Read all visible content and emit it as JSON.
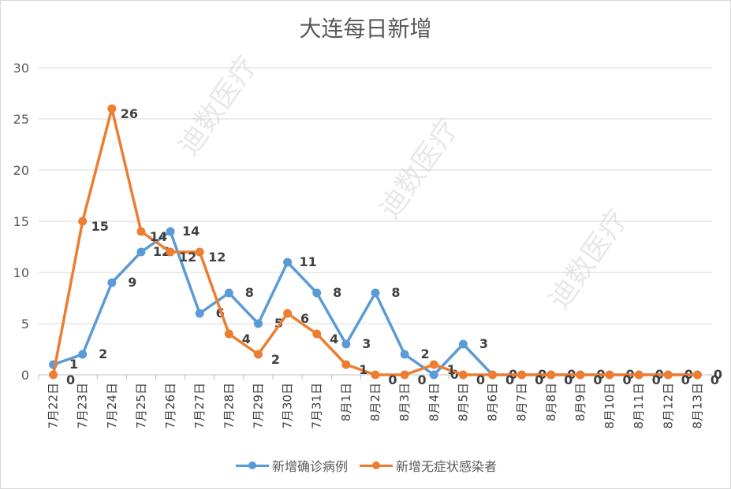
{
  "chart_data": {
    "type": "line",
    "title": "大连每日新增",
    "xlabel": "",
    "ylabel": "",
    "ylim": [
      0,
      30
    ],
    "yticks": [
      0,
      5,
      10,
      15,
      20,
      25,
      30
    ],
    "grid": true,
    "legend_position": "bottom",
    "categories": [
      "7月22日",
      "7月23日",
      "7月24日",
      "7月25日",
      "7月26日",
      "7月27日",
      "7月28日",
      "7月29日",
      "7月30日",
      "7月31日",
      "8月1日",
      "8月2日",
      "8月3日",
      "8月4日",
      "8月5日",
      "8月6日",
      "8月7日",
      "8月8日",
      "8月9日",
      "8月10日",
      "8月11日",
      "8月12日",
      "8月13日"
    ],
    "series": [
      {
        "name": "新增确诊病例",
        "color": "#5b9bd5",
        "values": [
          1,
          2,
          9,
          12,
          14,
          6,
          8,
          5,
          11,
          8,
          3,
          8,
          2,
          0,
          3,
          0,
          0,
          0,
          0,
          0,
          0,
          0,
          0
        ]
      },
      {
        "name": "新增无症状感染者",
        "color": "#ed7d31",
        "values": [
          0,
          15,
          26,
          14,
          12,
          12,
          4,
          2,
          6,
          4,
          1,
          0,
          0,
          1,
          0,
          0,
          0,
          0,
          0,
          0,
          0,
          0,
          0
        ]
      }
    ]
  },
  "watermark": "迪数医疗"
}
